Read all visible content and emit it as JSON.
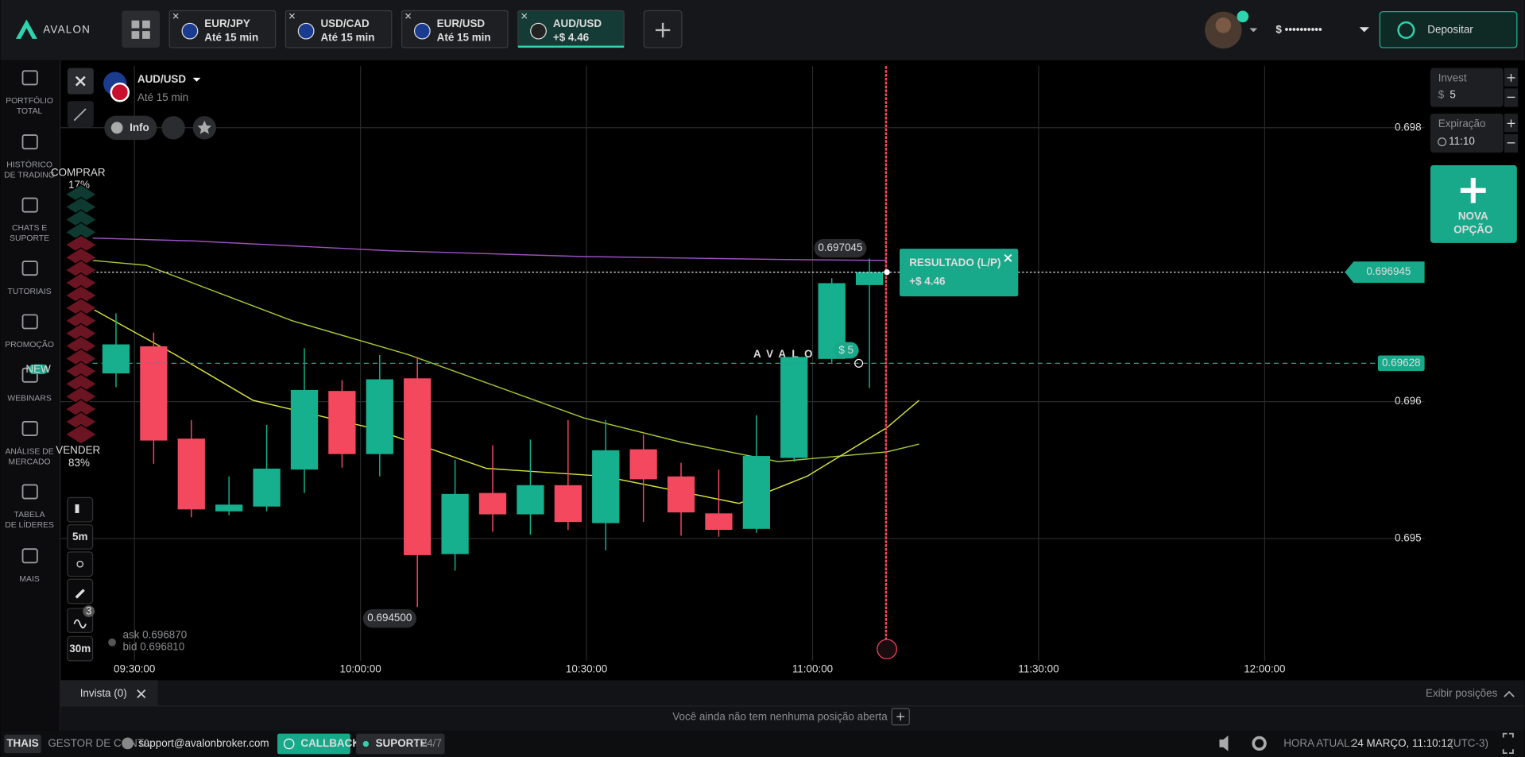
{
  "header": {
    "logo": "AVALON",
    "tabs": [
      {
        "pair": "EUR/JPY",
        "sub": "Até 15 min"
      },
      {
        "pair": "USD/CAD",
        "sub": "Até 15 min"
      },
      {
        "pair": "EUR/USD",
        "sub": "Até 15 min"
      },
      {
        "pair": "AUD/USD",
        "sub": "+$ 4.46"
      }
    ],
    "balance": "$ ••••••••••",
    "deposit": "Depositar"
  },
  "sidebar": [
    [
      "PORTFÓLIO",
      "TOTAL"
    ],
    [
      "HISTÓRICO",
      "DE TRADING"
    ],
    [
      "CHATS E",
      "SUPORTE"
    ],
    [
      "TUTORIAIS"
    ],
    [
      "PROMOÇÃO"
    ],
    [
      "WEBINARS"
    ],
    [
      "ANÁLISE DE",
      "MERCADO"
    ],
    [
      "TABELA",
      "DE LÍDERES"
    ],
    [
      "MAIS"
    ]
  ],
  "new_badge": "NEW",
  "asset": {
    "name": "AUD/USD",
    "sub": "Até 15 min",
    "info": "Info"
  },
  "sentiment": {
    "buy_label": "COMPRAR",
    "buy": "17%",
    "sell_label": "VENDER",
    "sell": "83%"
  },
  "tools": {
    "timeframe": "5m",
    "period": "30m",
    "indicators": "3"
  },
  "quotes": {
    "ask": "ask 0.696870",
    "bid": "bid 0.696810"
  },
  "watermark": "AVALON",
  "chart_data": {
    "type": "candlestick",
    "open": [
      0.696206,
      0.696404,
      0.69573,
      0.695199,
      0.695234,
      0.695504,
      0.696078,
      0.695617,
      0.69617,
      0.694887,
      0.695333,
      0.695177,
      0.69539,
      0.695113,
      0.695652,
      0.695454,
      0.695184,
      0.695071,
      0.695589,
      0.696312,
      0.696851
    ],
    "high": [
      0.696645,
      0.696504,
      0.695865,
      0.695454,
      0.69583,
      0.69639,
      0.696156,
      0.69634,
      0.696326,
      0.695574,
      0.695681,
      0.695723,
      0.695865,
      0.695865,
      0.695759,
      0.695553,
      0.695504,
      0.695901,
      0.696326,
      0.696901,
      0.697045
    ],
    "low": [
      0.696106,
      0.695546,
      0.695156,
      0.69517,
      0.695199,
      0.695333,
      0.695518,
      0.695454,
      0.6945,
      0.694766,
      0.69505,
      0.695028,
      0.695064,
      0.694915,
      0.695121,
      0.695021,
      0.695014,
      0.695043,
      0.69556,
      0.696284,
      0.696099
    ],
    "close": [
      0.696418,
      0.695716,
      0.695213,
      0.695248,
      0.695511,
      0.696085,
      0.695617,
      0.696163,
      0.694879,
      0.695326,
      0.695177,
      0.69539,
      0.695121,
      0.695645,
      0.695433,
      0.695191,
      0.695064,
      0.695603,
      0.696326,
      0.696865,
      0.696945
    ],
    "up_color": "#17b08f",
    "down_color": "#f4485f",
    "ylim": [
      0.69398,
      0.69845
    ],
    "yticks": [
      0.695,
      0.696,
      0.698
    ],
    "xticks": [
      "09:30:00",
      "10:00:00",
      "10:30:00",
      "11:00:00",
      "11:30:00",
      "12:00:00"
    ],
    "current_price": 0.696945,
    "strike_price": 0.69628,
    "high_label": 0.697045,
    "low_label": {
      "value": 0.6945,
      "label": "0.694500"
    },
    "grid": true
  },
  "trade": {
    "result_title": "RESULTADO (L/P)",
    "result": "+$ 4.46",
    "amount": "$ 5"
  },
  "order": {
    "invest_label": "Invest",
    "currency": "$",
    "invest": "5",
    "expiry_label": "Expiração",
    "expiry": "11:10",
    "new_option": [
      "NOVA",
      "OPÇÃO"
    ]
  },
  "positions": {
    "tab": "Invista (0)",
    "show": "Exibir posições",
    "empty": "Você ainda não tem nenhuma posição aberta"
  },
  "footer": {
    "user": "THAIS",
    "manager": "GESTOR DE CONTA",
    "email": "support@avalonbroker.com",
    "callback": "CALLBACK",
    "support": "SUPORTE",
    "support_hours": "- 24/7",
    "time_label": "HORA ATUAL:",
    "time": "24 MARÇO, 11:10:12",
    "tz": "(UTC-3)"
  }
}
